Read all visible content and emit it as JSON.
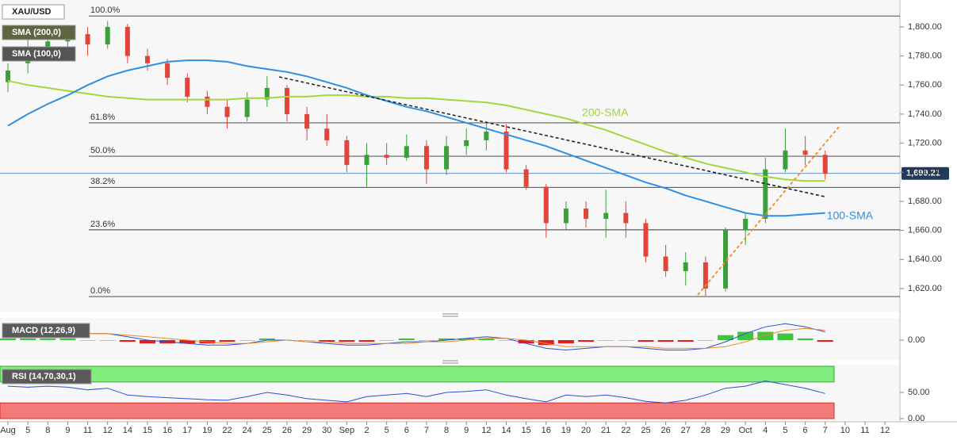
{
  "chart_data": {
    "type": "candlestick",
    "symbol": "XAU/USD",
    "categories": [
      "Aug",
      "5",
      "8",
      "9",
      "11",
      "12",
      "14",
      "15",
      "16",
      "17",
      "19",
      "22",
      "24",
      "25",
      "26",
      "29",
      "30",
      "Sep",
      "2",
      "5",
      "6",
      "7",
      "8",
      "9",
      "12",
      "14",
      "15",
      "16",
      "19",
      "20",
      "21",
      "22",
      "25",
      "26",
      "27",
      "28",
      "29",
      "Oct",
      "4",
      "5",
      "6",
      "7",
      "10",
      "11",
      "12"
    ],
    "candles": [
      [
        1762,
        1775,
        1755,
        1770
      ],
      [
        1775,
        1792,
        1768,
        1785
      ],
      [
        1785,
        1798,
        1778,
        1790
      ],
      [
        1790,
        1800,
        1782,
        1795
      ],
      [
        1795,
        1800,
        1780,
        1788
      ],
      [
        1788,
        1804,
        1785,
        1800
      ],
      [
        1800,
        1802,
        1775,
        1780
      ],
      [
        1780,
        1785,
        1770,
        1775
      ],
      [
        1775,
        1778,
        1760,
        1765
      ],
      [
        1765,
        1768,
        1748,
        1752
      ],
      [
        1752,
        1756,
        1740,
        1745
      ],
      [
        1745,
        1750,
        1730,
        1738
      ],
      [
        1738,
        1755,
        1735,
        1750
      ],
      [
        1750,
        1766,
        1745,
        1758
      ],
      [
        1758,
        1760,
        1735,
        1740
      ],
      [
        1740,
        1745,
        1722,
        1730
      ],
      [
        1730,
        1740,
        1718,
        1722
      ],
      [
        1722,
        1725,
        1700,
        1705
      ],
      [
        1705,
        1720,
        1690,
        1712
      ],
      [
        1712,
        1720,
        1705,
        1710
      ],
      [
        1710,
        1726,
        1708,
        1718
      ],
      [
        1718,
        1722,
        1692,
        1702
      ],
      [
        1702,
        1725,
        1698,
        1718
      ],
      [
        1718,
        1730,
        1712,
        1722
      ],
      [
        1722,
        1735,
        1715,
        1728
      ],
      [
        1728,
        1733,
        1700,
        1702
      ],
      [
        1702,
        1705,
        1688,
        1690
      ],
      [
        1690,
        1692,
        1655,
        1665
      ],
      [
        1665,
        1680,
        1660,
        1675
      ],
      [
        1675,
        1680,
        1662,
        1668
      ],
      [
        1668,
        1688,
        1655,
        1672
      ],
      [
        1672,
        1680,
        1655,
        1665
      ],
      [
        1665,
        1668,
        1638,
        1642
      ],
      [
        1642,
        1650,
        1628,
        1632
      ],
      [
        1632,
        1645,
        1622,
        1638
      ],
      [
        1638,
        1642,
        1615,
        1620
      ],
      [
        1620,
        1662,
        1618,
        1660
      ],
      [
        1660,
        1672,
        1650,
        1668
      ],
      [
        1668,
        1710,
        1665,
        1702
      ],
      [
        1702,
        1730,
        1700,
        1715
      ],
      [
        1715,
        1725,
        1705,
        1712
      ],
      [
        1712,
        1715,
        1695,
        1699
      ],
      null,
      null,
      null
    ],
    "up_color": "#3aa13a",
    "down_color": "#e0443b",
    "ylim": [
      1604.7,
      1818.5
    ],
    "yticks": [
      {
        "value": 1620,
        "label": "1,620.00"
      },
      {
        "value": 1640,
        "label": "1,640.00"
      },
      {
        "value": 1660,
        "label": "1,660.00"
      },
      {
        "value": 1680,
        "label": "1,680.00"
      },
      {
        "value": 1700,
        "label": "1,700.00"
      },
      {
        "value": 1720,
        "label": "1,720.00"
      },
      {
        "value": 1740,
        "label": "1,740.00"
      },
      {
        "value": 1760,
        "label": "1,760.00"
      },
      {
        "value": 1780,
        "label": "1,780.00"
      },
      {
        "value": 1800,
        "label": "1,800.00"
      }
    ],
    "series": [
      {
        "name": "SMA (200,0)",
        "color": "#a5d63b",
        "annotation": "200-SMA",
        "values": [
          1763,
          1760,
          1758,
          1756,
          1754,
          1752,
          1751,
          1750,
          1750,
          1750,
          1750,
          1750,
          1751,
          1751,
          1752,
          1752,
          1753,
          1753,
          1752,
          1752,
          1751,
          1751,
          1750,
          1749,
          1748,
          1746,
          1743,
          1740,
          1737,
          1733,
          1729,
          1724,
          1719,
          1714,
          1710,
          1706,
          1703,
          1700,
          1697,
          1695,
          1694,
          1694,
          null,
          null,
          null
        ]
      },
      {
        "name": "SMA (100,0)",
        "color": "#2f8fe0",
        "annotation": "100-SMA",
        "values": [
          1732,
          1740,
          1747,
          1753,
          1760,
          1766,
          1770,
          1773,
          1776,
          1777,
          1777,
          1776,
          1773,
          1771,
          1769,
          1766,
          1762,
          1758,
          1753,
          1749,
          1745,
          1742,
          1738,
          1734,
          1730,
          1726,
          1722,
          1718,
          1713,
          1708,
          1703,
          1698,
          1693,
          1689,
          1684,
          1680,
          1676,
          1672,
          1670,
          1670,
          1671,
          1672,
          null,
          null,
          null
        ]
      }
    ],
    "fib_levels": [
      {
        "label": "100.0%",
        "price": 1807.5
      },
      {
        "label": "61.8%",
        "price": 1734
      },
      {
        "label": "50.0%",
        "price": 1711
      },
      {
        "label": "38.2%",
        "price": 1689.6
      },
      {
        "label": "23.6%",
        "price": 1660.4
      },
      {
        "label": "0.0%",
        "price": 1614.5
      }
    ],
    "current_price": {
      "value": 1699.21,
      "label": "1,699.21"
    },
    "macd": {
      "name": "MACD (12,26,9)",
      "ylim": [
        -12,
        12
      ],
      "yticks": [
        {
          "value": 0,
          "label": "0.00"
        }
      ],
      "macd": [
        3,
        4,
        5,
        5,
        4,
        4,
        2,
        0,
        -1,
        -2,
        -3,
        -3,
        -2,
        0,
        0,
        -1,
        -2,
        -3,
        -3,
        -2,
        -1,
        -1,
        0,
        1,
        2,
        1,
        -2,
        -5,
        -6,
        -5,
        -4,
        -4,
        -5,
        -6,
        -6,
        -5,
        -1,
        4,
        8,
        10,
        8,
        5,
        null,
        null,
        null
      ],
      "signal": [
        2,
        3,
        4,
        4,
        4,
        4,
        3,
        2,
        1,
        0,
        -1,
        -2,
        -2,
        -1,
        0,
        -1,
        -1,
        -2,
        -2,
        -2,
        -2,
        -1,
        -1,
        0,
        1,
        1,
        0,
        -2,
        -4,
        -4,
        -4,
        -4,
        -4,
        -5,
        -5,
        -5,
        -4,
        -1,
        3,
        6,
        7,
        6,
        null,
        null,
        null
      ],
      "histogram": [
        1,
        1,
        1,
        1,
        0,
        0,
        -1,
        -2,
        -2,
        -2,
        -2,
        -1,
        0,
        1,
        0,
        0,
        -1,
        -1,
        -1,
        0,
        1,
        0,
        1,
        1,
        1,
        0,
        -2,
        -3,
        -2,
        -1,
        0,
        0,
        -1,
        -1,
        -1,
        0,
        3,
        5,
        5,
        4,
        1,
        -1,
        null,
        null,
        null
      ]
    },
    "rsi": {
      "name": "RSI (14,70,30,1)",
      "ylim": [
        0,
        100
      ],
      "yticks": [
        {
          "value": 0,
          "label": "0.00"
        },
        {
          "value": 50,
          "label": "50.00"
        }
      ],
      "overbought": 70,
      "oversold": 30,
      "values": [
        62,
        60,
        62,
        60,
        55,
        58,
        45,
        42,
        40,
        38,
        36,
        35,
        42,
        50,
        45,
        38,
        35,
        32,
        42,
        45,
        48,
        42,
        50,
        52,
        55,
        45,
        38,
        32,
        45,
        42,
        45,
        40,
        33,
        30,
        35,
        45,
        58,
        62,
        72,
        65,
        58,
        48,
        null,
        null,
        null
      ]
    }
  }
}
